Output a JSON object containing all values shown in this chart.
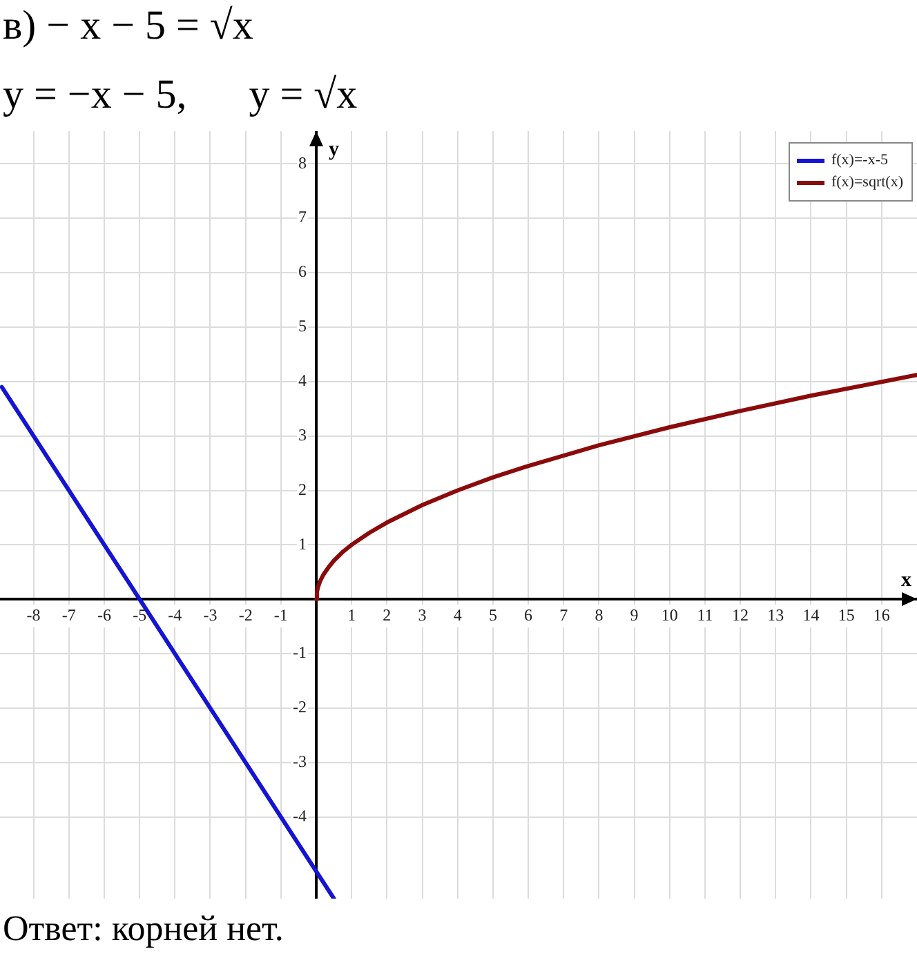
{
  "chart_data": {
    "type": "line",
    "title": "в) − x − 5 = √x",
    "subtitle": "y = −x − 5,      y = √x",
    "xlabel": "x",
    "ylabel": "y",
    "annotations": [
      "Ответ: корней нет."
    ],
    "series": [
      {
        "name": "f(x)=-x-5",
        "color": "#1414d2",
        "x": [
          -8.9,
          -5,
          0.5
        ],
        "values": [
          3.9,
          0,
          -5.5
        ]
      },
      {
        "name": "f(x)=sqrt(x)",
        "color": "#8b0a0a",
        "x": [
          0,
          0.02,
          0.05,
          0.1,
          0.2,
          0.35,
          0.5,
          0.75,
          1,
          1.5,
          2,
          3,
          4,
          5,
          6,
          8,
          10,
          12,
          14,
          17
        ],
        "values": [
          0,
          0.14,
          0.22,
          0.32,
          0.45,
          0.59,
          0.71,
          0.87,
          1,
          1.22,
          1.41,
          1.73,
          2,
          2.24,
          2.45,
          2.83,
          3.16,
          3.46,
          3.74,
          4.12
        ]
      }
    ],
    "xlim": [
      -8.95,
      17
    ],
    "ylim": [
      -5.5,
      8.6
    ],
    "xticks": [
      -8,
      -7,
      -6,
      -5,
      -4,
      -3,
      -2,
      -1,
      1,
      2,
      3,
      4,
      5,
      6,
      7,
      8,
      9,
      10,
      11,
      12,
      13,
      14,
      15,
      16
    ],
    "yticks": [
      -4,
      -3,
      -2,
      -1,
      1,
      2,
      3,
      4,
      5,
      6,
      7,
      8
    ],
    "grid": true,
    "legend": "top right",
    "marker": "none",
    "line_style": "solid"
  }
}
